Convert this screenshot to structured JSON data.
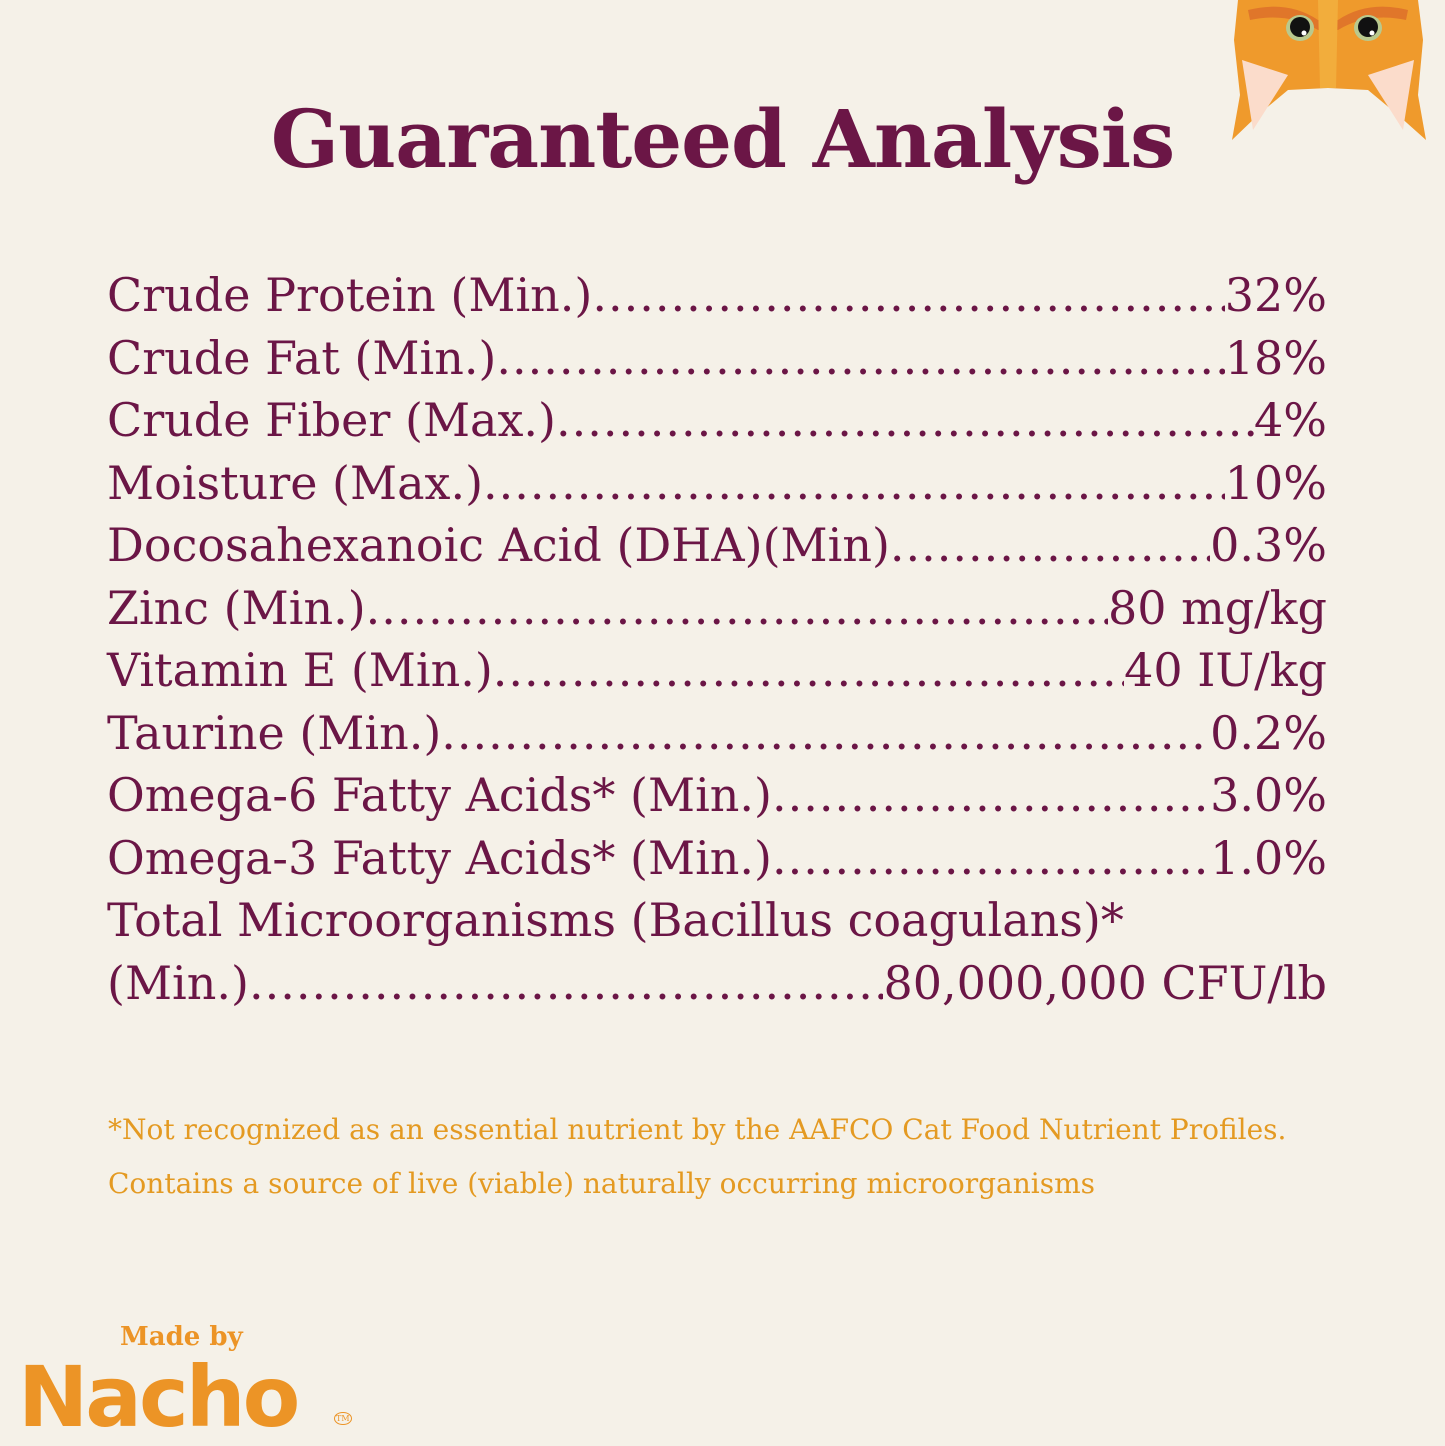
{
  "title": "Guaranteed Analysis",
  "rows": [
    {
      "label": "Crude Protein (Min.)",
      "value": "32%"
    },
    {
      "label": "Crude Fat (Min.)",
      "value": "18%"
    },
    {
      "label": "Crude Fiber (Max.)",
      "value": "4%"
    },
    {
      "label": "Moisture (Max.)",
      "value": "10%"
    },
    {
      "label": "Docosahexanoic Acid (DHA)(Min)",
      "value": "0.3%"
    },
    {
      "label": "Zinc (Min.)",
      "value": "80 mg/kg"
    },
    {
      "label": "Vitamin E (Min.)",
      "value": "40 IU/kg"
    },
    {
      "label": "Taurine (Min.)",
      "value": "0.2%"
    },
    {
      "label": "Omega-6 Fatty Acids* (Min.)",
      "value": "3.0%"
    },
    {
      "label": "Omega-3 Fatty Acids* (Min.)",
      "value": "1.0%"
    }
  ],
  "microorganisms": {
    "label_line1": "Total Microorganisms (Bacillus coagulans)*",
    "label_line2": "(Min.)",
    "value": "80,000,000 CFU/lb"
  },
  "footnotes": [
    "*Not recognized as an essential nutrient by the AAFCO Cat Food Nutrient Profiles.",
    "Contains a source of live (viable) naturally occurring microorganisms"
  ],
  "logo": {
    "made_by": "Made by",
    "brand": "Nacho",
    "tm": "TM"
  },
  "colors": {
    "primary": "#6b1646",
    "accent": "#e49a22",
    "background": "#f5f1e8"
  },
  "illustration": "cat-face-upside-down"
}
